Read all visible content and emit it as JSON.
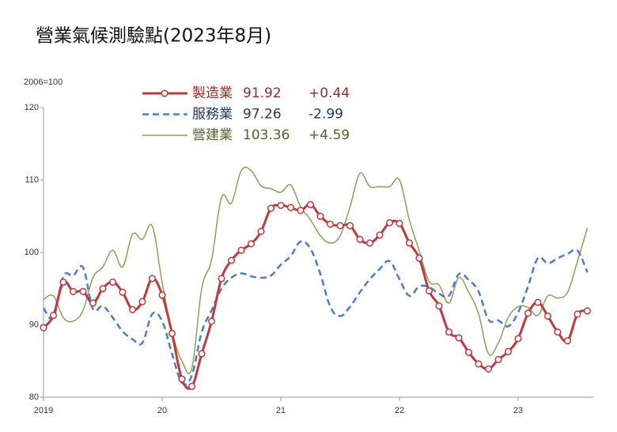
{
  "chart_data": {
    "type": "line",
    "title": "營業氣候測驗點(2023年8月)",
    "unit_label": "2006=100",
    "categories": [
      "2019",
      null,
      null,
      null,
      null,
      null,
      null,
      null,
      null,
      null,
      null,
      null,
      "20",
      null,
      null,
      null,
      null,
      null,
      null,
      null,
      null,
      null,
      null,
      null,
      "21",
      null,
      null,
      null,
      null,
      null,
      null,
      null,
      null,
      null,
      null,
      null,
      "22",
      null,
      null,
      null,
      null,
      null,
      null,
      null,
      null,
      null,
      null,
      null,
      "23",
      null,
      null,
      null,
      null,
      null,
      null,
      null
    ],
    "ylim": [
      80,
      120
    ],
    "yticks": [
      80,
      90,
      100,
      110,
      120
    ],
    "grid": false,
    "series": [
      {
        "name": "製造業",
        "color": "#c0393b",
        "text_color": "#9b2a2c",
        "width": 3,
        "dashed": false,
        "markers": true,
        "legend_text": [
          "91.92",
          "+0.44"
        ],
        "values": [
          89.6,
          91.3,
          95.9,
          94.6,
          94.6,
          93.0,
          95.0,
          95.9,
          94.5,
          92.1,
          93.2,
          96.4,
          94.1,
          88.8,
          82.5,
          81.5,
          86.0,
          90.5,
          96.4,
          98.9,
          100.3,
          101.2,
          102.9,
          106.1,
          106.5,
          106.2,
          105.8,
          106.6,
          105.0,
          103.9,
          103.7,
          103.7,
          101.8,
          101.3,
          102.4,
          104.1,
          104.0,
          101.3,
          99.2,
          94.7,
          92.6,
          89.0,
          88.2,
          86.2,
          84.6,
          83.9,
          85.2,
          86.3,
          88.1,
          91.6,
          93.1,
          91.2,
          89.0,
          87.8,
          91.48,
          91.92
        ]
      },
      {
        "name": "服務業",
        "color": "#4a7bd0",
        "text_color": "#1f3864",
        "width": 2.5,
        "dashed": true,
        "markers": false,
        "legend_text": [
          "97.26",
          "-2.99"
        ],
        "values": [
          92.3,
          91.0,
          96.7,
          96.8,
          97.9,
          92.2,
          92.6,
          91.0,
          89.1,
          88.0,
          87.5,
          91.5,
          90.5,
          86.0,
          82.0,
          83.0,
          89.0,
          92.0,
          95.0,
          96.5,
          97.1,
          96.7,
          96.5,
          96.8,
          98.3,
          99.5,
          101.5,
          100.5,
          97.0,
          92.5,
          91.2,
          92.5,
          94.5,
          96.3,
          97.7,
          98.8,
          96.3,
          94.0,
          95.3,
          95.2,
          94.3,
          94.0,
          97.0,
          96.2,
          94.6,
          90.7,
          90.6,
          89.8,
          91.7,
          95.3,
          99.2,
          98.5,
          99.2,
          99.8,
          100.25,
          97.26
        ]
      },
      {
        "name": "營建業",
        "color": "#8aa05a",
        "text_color": "#4f6228",
        "width": 1.5,
        "dashed": false,
        "markers": false,
        "legend_text": [
          "103.36",
          "+4.59"
        ],
        "values": [
          93.5,
          94.0,
          91.0,
          90.5,
          92.0,
          96.5,
          98.0,
          100.3,
          98.0,
          102.5,
          101.8,
          103.6,
          95.8,
          89.0,
          85.0,
          84.0,
          95.0,
          99.0,
          107.6,
          106.8,
          111.3,
          111.3,
          109.2,
          108.8,
          108.3,
          109.3,
          106.3,
          104.5,
          102.3,
          101.3,
          102.3,
          106.3,
          110.9,
          109.1,
          109.1,
          109.1,
          110.0,
          104.5,
          100.2,
          96.0,
          95.5,
          93.0,
          96.5,
          94.5,
          91.5,
          86.0,
          87.5,
          91.0,
          92.5,
          92.4,
          91.3,
          94.0,
          93.7,
          94.5,
          98.77,
          103.36
        ]
      }
    ]
  }
}
